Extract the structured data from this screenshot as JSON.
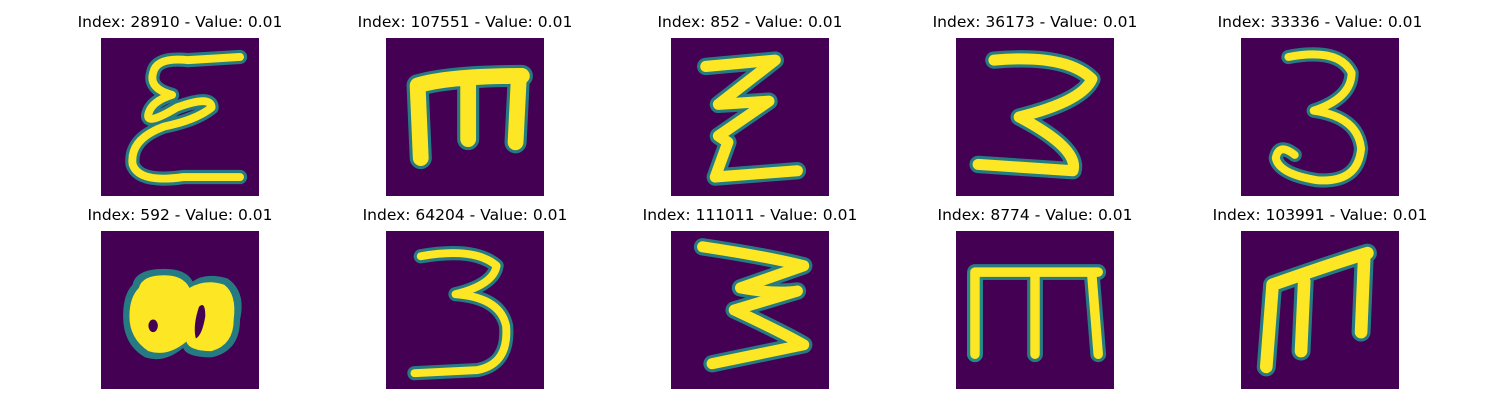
{
  "colors": {
    "background": "#440154",
    "mid": "#21918c",
    "foreground": "#fde725"
  },
  "panels": [
    {
      "title": "Index: 28910 - Value: 0.01",
      "glyph": "cursive-e-icon"
    },
    {
      "title": "Index: 107551 - Value: 0.01",
      "glyph": "blocky-m-sideways-icon"
    },
    {
      "title": "Index: 852 - Value: 0.01",
      "glyph": "zigzag-z-icon"
    },
    {
      "title": "Index: 36173 - Value: 0.01",
      "glyph": "angular-3-icon"
    },
    {
      "title": "Index: 33336 - Value: 0.01",
      "glyph": "round-3-icon"
    },
    {
      "title": "Index: 592 - Value: 0.01",
      "glyph": "blob-icon"
    },
    {
      "title": "Index: 64204 - Value: 0.01",
      "glyph": "angular-3-icon"
    },
    {
      "title": "Index: 111011 - Value: 0.01",
      "glyph": "zigzag-3-icon"
    },
    {
      "title": "Index: 8774 - Value: 0.01",
      "glyph": "m-icon"
    },
    {
      "title": "Index: 103991 - Value: 0.01",
      "glyph": "m-icon"
    }
  ]
}
